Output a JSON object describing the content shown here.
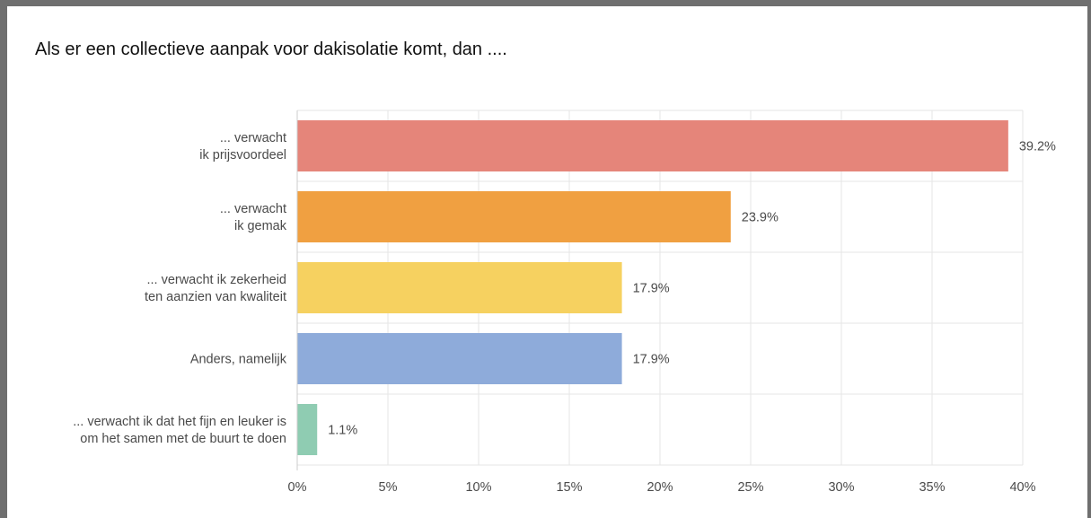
{
  "title": "Als er een collectieve aanpak voor dakisolatie komt, dan ....",
  "chart_data": {
    "type": "bar",
    "orientation": "horizontal",
    "title": "Als er een collectieve aanpak voor dakisolatie komt, dan ....",
    "categories": [
      [
        "... verwacht",
        "ik prijsvoordeel"
      ],
      [
        "... verwacht",
        "ik gemak"
      ],
      [
        "... verwacht ik zekerheid",
        "ten aanzien van kwaliteit"
      ],
      [
        "Anders, namelijk"
      ],
      [
        "... verwacht ik dat het fijn en leuker is",
        "om het samen met de buurt te doen"
      ]
    ],
    "values": [
      39.2,
      23.9,
      17.9,
      17.9,
      1.1
    ],
    "value_labels": [
      "39.2%",
      "23.9%",
      "17.9%",
      "17.9%",
      "1.1%"
    ],
    "colors": [
      "#e5857a",
      "#f0a041",
      "#f6d160",
      "#8eabda",
      "#8fccb2"
    ],
    "xlim": [
      0,
      40
    ],
    "xticks": [
      0,
      5,
      10,
      15,
      20,
      25,
      30,
      35,
      40
    ],
    "xtick_labels": [
      "0%",
      "5%",
      "10%",
      "15%",
      "20%",
      "25%",
      "30%",
      "35%",
      "40%"
    ],
    "grid": true,
    "legend": "none"
  }
}
